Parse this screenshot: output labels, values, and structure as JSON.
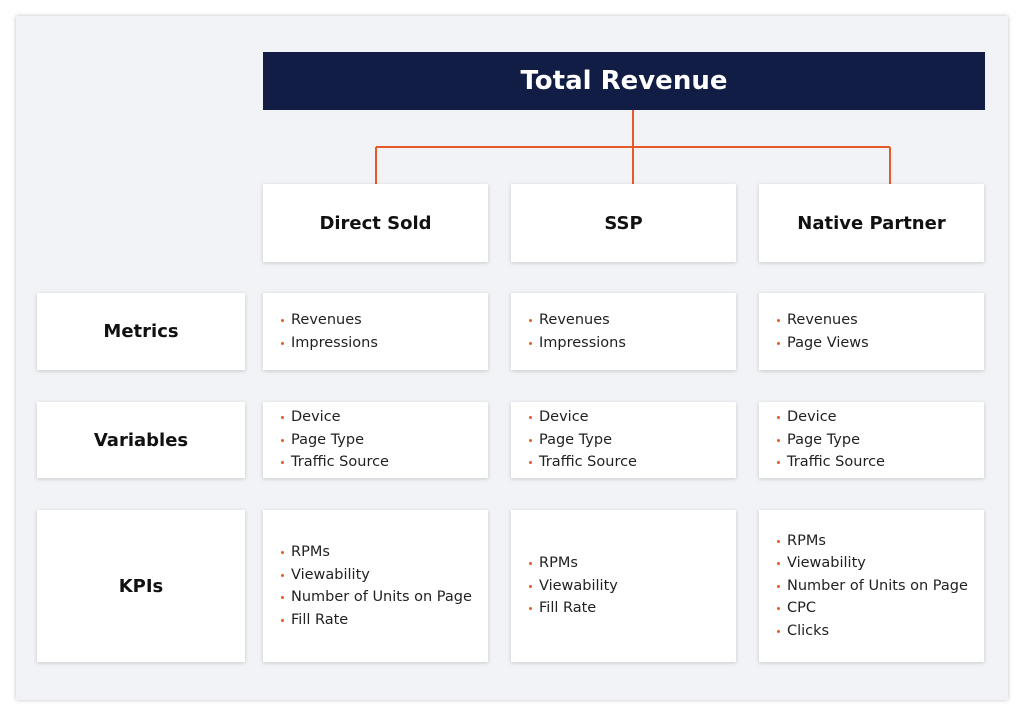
{
  "title": "Total Revenue",
  "columns": [
    "Direct Sold",
    "SSP",
    "Native Partner"
  ],
  "rows": [
    {
      "label": "Metrics",
      "cells": [
        [
          "Revenues",
          "Impressions"
        ],
        [
          "Revenues",
          "Impressions"
        ],
        [
          "Revenues",
          "Page Views"
        ]
      ]
    },
    {
      "label": "Variables",
      "cells": [
        [
          "Device",
          "Page Type",
          "Traffic Source"
        ],
        [
          "Device",
          "Page Type",
          "Traffic Source"
        ],
        [
          "Device",
          "Page Type",
          "Traffic Source"
        ]
      ]
    },
    {
      "label": "KPIs",
      "cells": [
        [
          "RPMs",
          "Viewability",
          "Number of Units on Page",
          "Fill Rate"
        ],
        [
          "RPMs",
          "Viewability",
          "Fill Rate"
        ],
        [
          "RPMs",
          "Viewability",
          "Number of Units on Page",
          "CPC",
          "Clicks"
        ]
      ]
    }
  ]
}
